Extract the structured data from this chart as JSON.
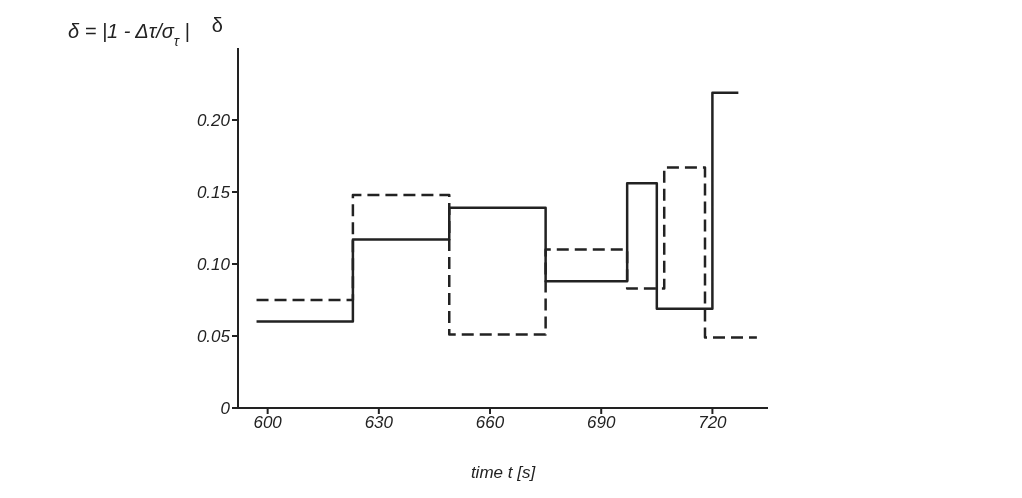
{
  "chart_data": {
    "type": "step",
    "xlabel": "time  t [s]",
    "ylabel": "δ",
    "annotations": [
      "δ = |1 - Δτ/σ$_{τ}$|"
    ],
    "series": [
      {
        "color": "#222222",
        "line_style": "solid",
        "x": [
          597,
          623,
          649,
          675,
          697,
          705,
          720,
          727
        ],
        "values": [
          0.06,
          0.117,
          0.139,
          0.088,
          0.156,
          0.069,
          0.219,
          0.219
        ]
      },
      {
        "color": "#222222",
        "line_style": "dashed",
        "x": [
          597,
          623,
          649,
          675,
          697,
          707,
          718,
          732
        ],
        "values": [
          0.075,
          0.148,
          0.051,
          0.11,
          0.083,
          0.167,
          0.049,
          0.049
        ]
      }
    ],
    "xlim": [
      592,
      735
    ],
    "xticks": [
      600,
      630,
      660,
      690,
      720
    ],
    "ylim": [
      0,
      0.25
    ],
    "yticks": [
      0,
      0.05,
      {
        "value": 0.1,
        "label": "0.10"
      },
      0.15,
      {
        "value": 0.2,
        "label": "0.20"
      }
    ],
    "grid": false,
    "legend": false,
    "marker": "none"
  }
}
